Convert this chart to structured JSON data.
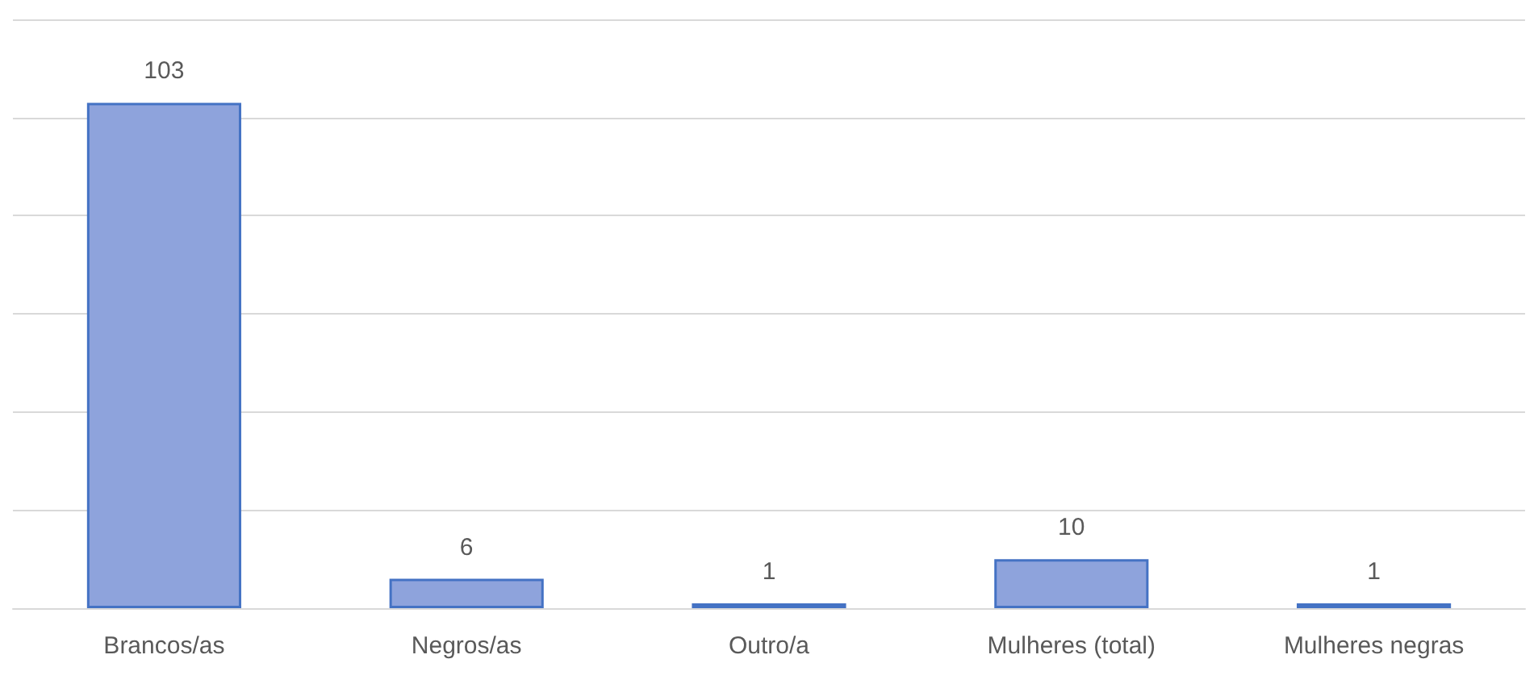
{
  "chart_data": {
    "type": "bar",
    "categories": [
      "Brancos/as",
      "Negros/as",
      "Outro/a",
      "Mulheres (total)",
      "Mulheres negras"
    ],
    "values": [
      103,
      6,
      1,
      10,
      1
    ],
    "color": "#8ea3dc",
    "ylim": [
      0,
      120
    ],
    "yticks": [
      0,
      20,
      40,
      60,
      80,
      100,
      120
    ],
    "grid": "y",
    "tick_labels": "x",
    "data_labels": true
  }
}
